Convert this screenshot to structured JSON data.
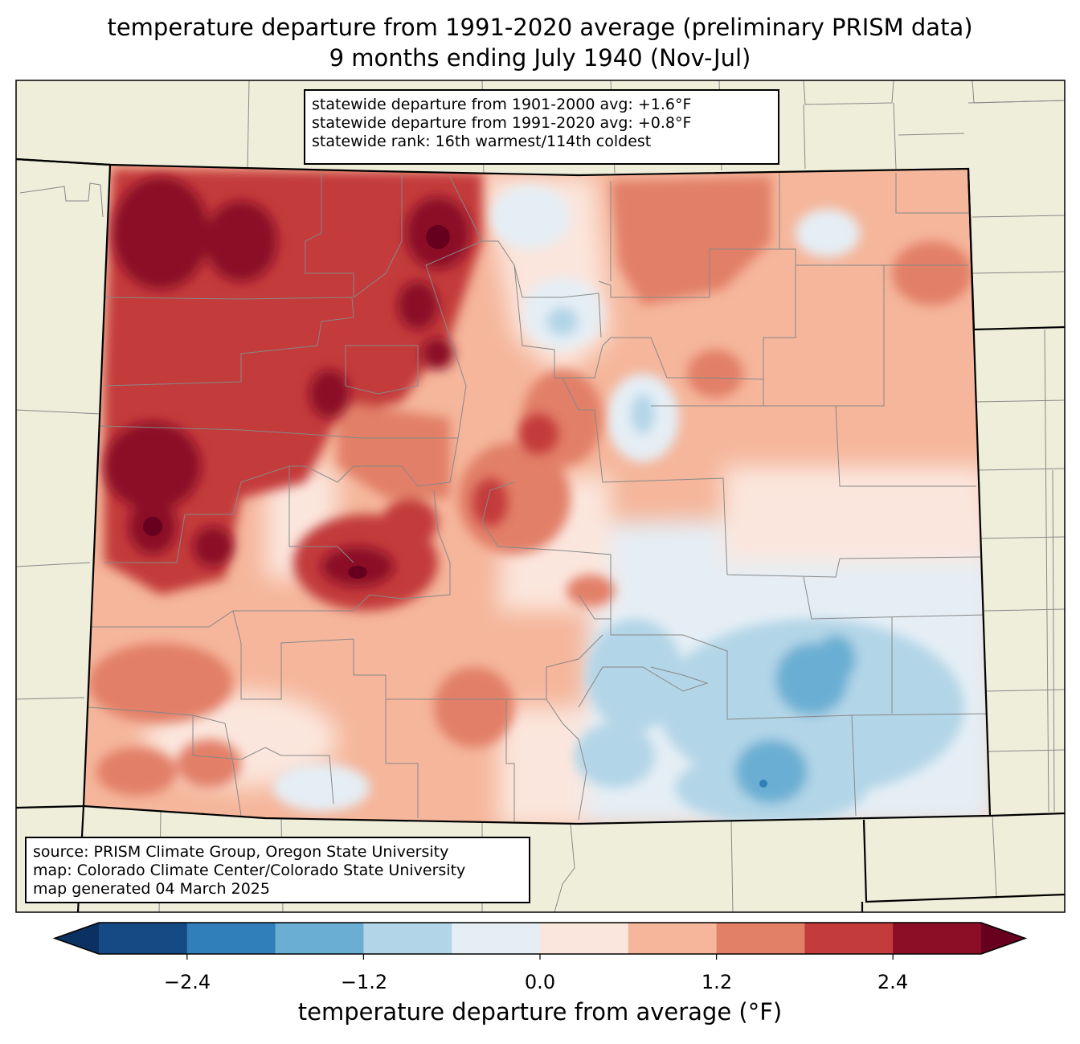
{
  "title": {
    "line1": "temperature departure from 1991-2020 average (preliminary PRISM data)",
    "line2": "9 months ending July 1940 (Nov-Jul)"
  },
  "stats": {
    "line1": "statewide departure from 1901-2000 avg: +1.6°F",
    "line2": "statewide departure from 1991-2020 avg: +0.8°F",
    "line3": "statewide rank: 16th warmest/114th coldest"
  },
  "source": {
    "line1": "source: PRISM Climate Group, Oregon State University",
    "line2": "map: Colorado Climate Center/Colorado State University",
    "line3": "map generated 04 March 2025"
  },
  "colorbar": {
    "label": "temperature departure from average (°F)",
    "ticks": [
      "−2.4",
      "−1.2",
      "0.0",
      "1.2",
      "2.4"
    ],
    "min": -3.0,
    "max": 3.0,
    "step": 0.6,
    "colors": [
      "#0a3161",
      "#164a84",
      "#317fba",
      "#6aafd3",
      "#b2d5e7",
      "#e5eef5",
      "#fbe6dd",
      "#f5b69b",
      "#e27f67",
      "#c33b3b",
      "#8b0d26",
      "#67001f"
    ]
  },
  "map": {
    "background": "#efeedb",
    "border_color": "#000000",
    "county_color": "#888888"
  }
}
